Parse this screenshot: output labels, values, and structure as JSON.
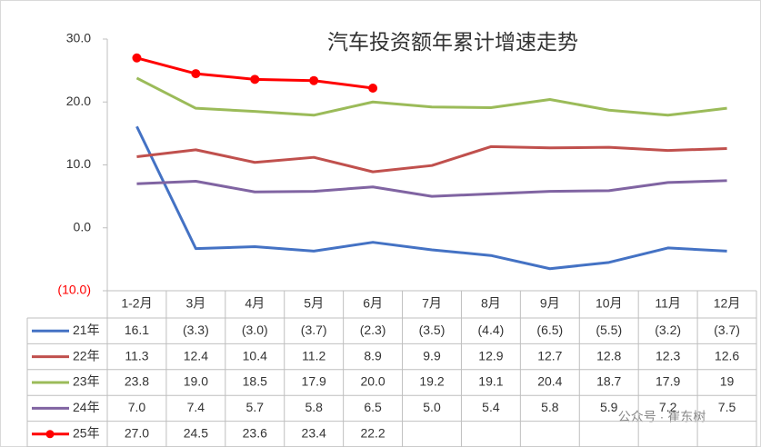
{
  "chart_data": {
    "type": "line",
    "title": "汽车投资额年累计增速走势",
    "categories": [
      "1-2月",
      "3月",
      "4月",
      "5月",
      "6月",
      "7月",
      "8月",
      "9月",
      "10月",
      "11月",
      "12月"
    ],
    "series": [
      {
        "name": "21年",
        "color": "#4472c4",
        "values": [
          16.1,
          -3.3,
          -3.0,
          -3.7,
          -2.3,
          -3.5,
          -4.4,
          -6.5,
          -5.5,
          -3.2,
          -3.7
        ],
        "value_labels": [
          "16.1",
          "(3.3)",
          "(3.0)",
          "(3.7)",
          "(2.3)",
          "(3.5)",
          "(4.4)",
          "(6.5)",
          "(5.5)",
          "(3.2)",
          "(3.7)"
        ]
      },
      {
        "name": "22年",
        "color": "#c0504d",
        "values": [
          11.3,
          12.4,
          10.4,
          11.2,
          8.9,
          9.9,
          12.9,
          12.7,
          12.8,
          12.3,
          12.6
        ],
        "value_labels": [
          "11.3",
          "12.4",
          "10.4",
          "11.2",
          "8.9",
          "9.9",
          "12.9",
          "12.7",
          "12.8",
          "12.3",
          "12.6"
        ]
      },
      {
        "name": "23年",
        "color": "#9bbb59",
        "values": [
          23.8,
          19.0,
          18.5,
          17.9,
          20.0,
          19.2,
          19.1,
          20.4,
          18.7,
          17.9,
          19
        ],
        "value_labels": [
          "23.8",
          "19.0",
          "18.5",
          "17.9",
          "20.0",
          "19.2",
          "19.1",
          "20.4",
          "18.7",
          "17.9",
          "19"
        ]
      },
      {
        "name": "24年",
        "color": "#8064a2",
        "values": [
          7.0,
          7.4,
          5.7,
          5.8,
          6.5,
          5.0,
          5.4,
          5.8,
          5.9,
          7.2,
          7.5
        ],
        "value_labels": [
          "7.0",
          "7.4",
          "5.7",
          "5.8",
          "6.5",
          "5.0",
          "5.4",
          "5.8",
          "5.9",
          "7.2",
          "7.5"
        ]
      },
      {
        "name": "25年",
        "color": "#ff0000",
        "markers": true,
        "values": [
          27.0,
          24.5,
          23.6,
          23.4,
          22.2,
          null,
          null,
          null,
          null,
          null,
          null
        ],
        "value_labels": [
          "27.0",
          "24.5",
          "23.6",
          "23.4",
          "22.2",
          null,
          null,
          null,
          null,
          null,
          null
        ]
      }
    ],
    "ylim": [
      -10,
      30
    ],
    "yticks": [
      {
        "value": 30,
        "label": "30.0"
      },
      {
        "value": 20,
        "label": "20.0"
      },
      {
        "value": 10,
        "label": "10.0"
      },
      {
        "value": 0,
        "label": "0.0"
      },
      {
        "value": -10,
        "label": "(10.0)"
      }
    ],
    "grid": false,
    "watermark": "公众号 · 崔东树"
  }
}
